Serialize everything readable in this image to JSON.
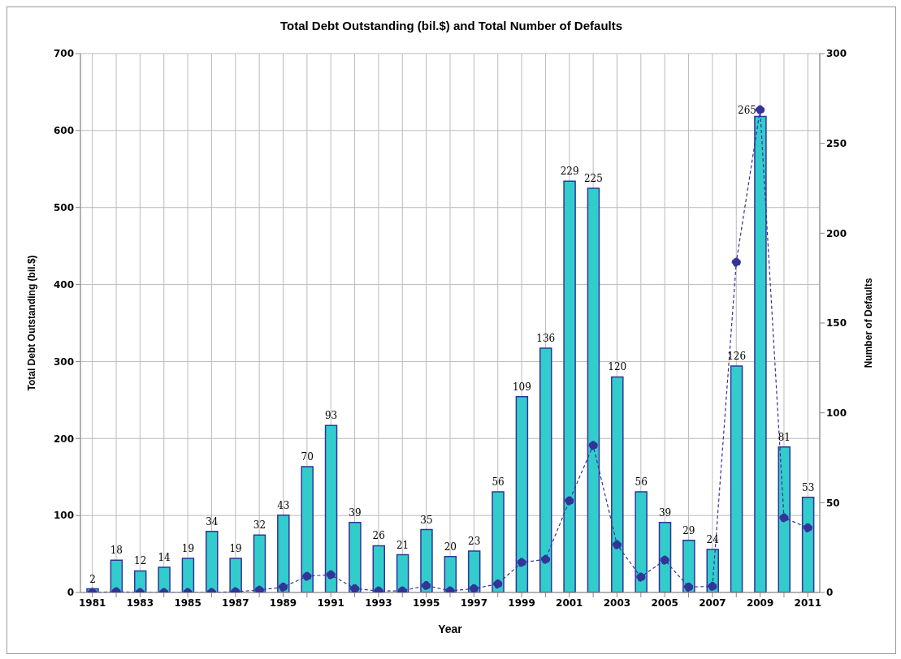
{
  "chart_data": {
    "type": "bar",
    "title": "Total Debt Outstanding (bil.$) and Total Number of Defaults",
    "xlabel": "Year",
    "ylabel": "Total Debt Outstanding (bil.$)",
    "y2label": "Number of Defaults",
    "categories": [
      "1981",
      null,
      "1983",
      null,
      "1985",
      null,
      "1987",
      null,
      "1989",
      null,
      "1991",
      null,
      "1993",
      null,
      "1995",
      null,
      "1997",
      null,
      "1999",
      null,
      "2001",
      null,
      "2003",
      null,
      "2005",
      null,
      "2007",
      null,
      "2009",
      null,
      "2011"
    ],
    "series": [
      {
        "axis": "y2",
        "color": "#33cccc",
        "data_labels": true,
        "values": [
          2,
          18,
          12,
          14,
          19,
          34,
          19,
          32,
          43,
          70,
          93,
          39,
          26,
          21,
          35,
          20,
          23,
          56,
          109,
          136,
          229,
          225,
          120,
          56,
          39,
          29,
          24,
          126,
          265,
          81,
          53
        ]
      },
      {
        "type": "line",
        "axis": "y",
        "color": "#333399",
        "marker": "circle",
        "line_style": "dashed",
        "values": [
          0,
          1,
          0,
          0,
          0,
          0,
          1,
          3,
          7,
          21,
          23,
          5,
          2,
          2,
          9,
          2,
          5,
          11,
          39,
          43,
          119,
          191,
          62,
          20,
          42,
          7,
          8,
          429,
          627,
          97,
          84
        ]
      }
    ],
    "ylim": [
      0,
      700
    ],
    "yticks": [
      0,
      100,
      200,
      300,
      400,
      500,
      600,
      700
    ],
    "y2lim": [
      0,
      300
    ],
    "y2ticks": [
      0,
      50,
      100,
      150,
      200,
      250,
      300
    ],
    "grid": true
  }
}
